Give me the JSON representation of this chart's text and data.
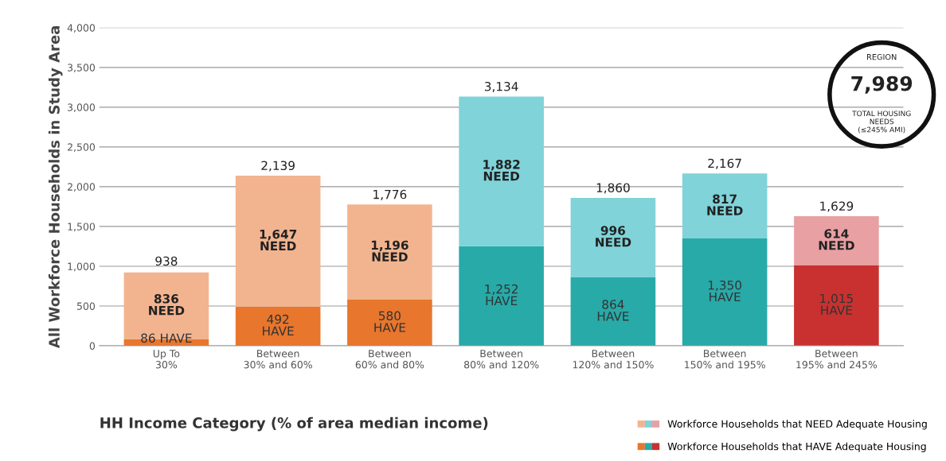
{
  "chart_data": {
    "type": "bar",
    "stacked": true,
    "xlabel": "HH Income Category (% of area median income)",
    "ylabel": "All Workforce Households in Study Area",
    "categories": [
      "Up To\n30%",
      "Between\n30% and 60%",
      "Between\n60% and 80%",
      "Between\n80% and 120%",
      "Between\n120% and 150%",
      "Between\n150% and 195%",
      "Between\n195% and 245%"
    ],
    "series": [
      {
        "name": "Workforce Households that HAVE Adequate Housing",
        "colors": [
          "#e8762d",
          "#e8762d",
          "#e8762d",
          "#27aaa8",
          "#27aaa8",
          "#27aaa8",
          "#c8312f"
        ],
        "values": [
          86,
          492,
          580,
          1252,
          864,
          1350,
          1015
        ],
        "value_labels": [
          "86 HAVE",
          "492\nHAVE",
          "580\nHAVE",
          "1,252\nHAVE",
          "864\nHAVE",
          "1,350\nHAVE",
          "1,015\nHAVE"
        ]
      },
      {
        "name": "Workforce Households that NEED Adequate Housing",
        "colors": [
          "#f2b48f",
          "#f2b48f",
          "#f2b48f",
          "#7fd3d9",
          "#7fd3d9",
          "#7fd3d9",
          "#e8a0a3"
        ],
        "values": [
          836,
          1647,
          1196,
          1882,
          996,
          817,
          614
        ],
        "value_labels": [
          "836\nNEED",
          "1,647\nNEED",
          "1,196\nNEED",
          "1,882\nNEED",
          "996\nNEED",
          "817\nNEED",
          "614\nNEED"
        ]
      }
    ],
    "ylim": [
      0,
      4000
    ],
    "yticks": [
      0,
      500,
      {
        "value": 1000,
        "label": "1,000"
      },
      {
        "value": 1500,
        "label": "1,500"
      },
      {
        "value": 2000,
        "label": "2,000"
      },
      {
        "value": 2500,
        "label": "2,500"
      },
      {
        "value": 3000,
        "label": "3,000"
      },
      {
        "value": 3500,
        "label": "3,500"
      },
      {
        "value": 4000,
        "label": "4,000"
      }
    ],
    "grid": "y",
    "legend": "bottom right",
    "annotations": [
      "REGION",
      "7,989",
      "TOTAL HOUSING\nNEEDS\n(≤245% AMI)",
      {
        "text": "938",
        "x": "Up To\n30%",
        "y": 938
      },
      {
        "text": "2,139",
        "x": "Between\n30% and 60%",
        "y": 2139
      },
      {
        "text": "1,776",
        "x": "Between\n60% and 80%",
        "y": 1776
      },
      {
        "text": "3,134",
        "x": "Between\n80% and 120%",
        "y": 3134
      },
      {
        "text": "1,860",
        "x": "Between\n120% and 150%",
        "y": 1860
      },
      {
        "text": "2,167",
        "x": "Between\n150% and 195%",
        "y": 2167
      },
      {
        "text": "1,629",
        "x": "Between\n195% and 245%",
        "y": 1629
      }
    ]
  }
}
